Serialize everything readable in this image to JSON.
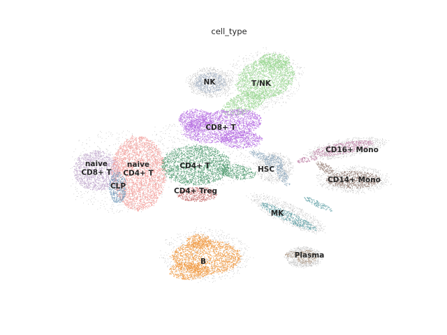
{
  "chart_data": {
    "type": "scatter",
    "title": "cell_type",
    "xlabel": "",
    "ylabel": "",
    "grid": false,
    "axes_visible": false,
    "legend": "on data",
    "background_color": "#999999",
    "clusters": [
      {
        "name": "NK",
        "color": "#a3b1c4"
      },
      {
        "name": "T/NK",
        "color": "#98d68f"
      },
      {
        "name": "CD8+ T",
        "color": "#b366e0"
      },
      {
        "name": "naive CD8+ T",
        "label_lines": [
          "naive",
          "CD8+ T"
        ],
        "color": "#c2a9cf"
      },
      {
        "name": "naive CD4+ T",
        "label_lines": [
          "naive",
          "CD4+ T"
        ],
        "color": "#f29b98"
      },
      {
        "name": "CLP",
        "color": "#6f97b8"
      },
      {
        "name": "CD4+ T",
        "color": "#4e9a6e"
      },
      {
        "name": "CD4+ Treg",
        "color": "#c06060"
      },
      {
        "name": "HSC",
        "color": "#8da8bd"
      },
      {
        "name": "CD16+ Mono",
        "color": "#c084a8"
      },
      {
        "name": "CD14+ Mono",
        "color": "#8c736a"
      },
      {
        "name": "MK",
        "color": "#5a9ea3"
      },
      {
        "name": "B",
        "color": "#f0953a"
      },
      {
        "name": "Plasma",
        "color": "#b09a86"
      }
    ]
  }
}
